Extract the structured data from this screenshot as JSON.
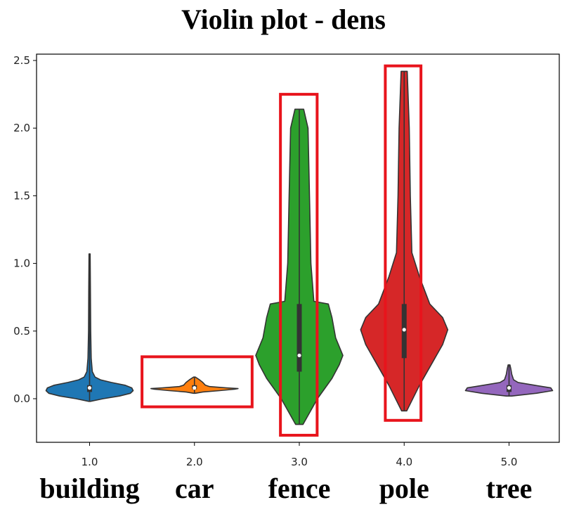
{
  "chart_data": {
    "type": "violin",
    "title": "Violin plot - dens",
    "xlabel": "",
    "ylabel": "",
    "ylim": [
      -0.32,
      2.57
    ],
    "yticks": [
      "0.0",
      "0.5",
      "1.0",
      "1.5",
      "2.0",
      "2.5"
    ],
    "xticks": [
      "1.0",
      "2.0",
      "3.0",
      "4.0",
      "5.0"
    ],
    "categories": [
      "building",
      "car",
      "fence",
      "pole",
      "tree"
    ],
    "series": [
      {
        "x": 1,
        "color": "#1f77b4",
        "min": -0.02,
        "max": 1.07,
        "q1": 0.05,
        "median": 0.08,
        "q3": 0.1,
        "density": [
          [
            -0.02,
            0.005
          ],
          [
            0.0,
            0.1
          ],
          [
            0.02,
            0.22
          ],
          [
            0.04,
            0.3
          ],
          [
            0.06,
            0.32
          ],
          [
            0.08,
            0.31
          ],
          [
            0.1,
            0.26
          ],
          [
            0.12,
            0.16
          ],
          [
            0.14,
            0.08
          ],
          [
            0.16,
            0.04
          ],
          [
            0.2,
            0.02
          ],
          [
            0.3,
            0.012
          ],
          [
            0.5,
            0.008
          ],
          [
            0.8,
            0.006
          ],
          [
            1.07,
            0.004
          ]
        ]
      },
      {
        "x": 2,
        "color": "#ff7f0e",
        "min": 0.04,
        "max": 0.16,
        "q1": 0.07,
        "median": 0.08,
        "q3": 0.1,
        "density": [
          [
            0.04,
            0.01
          ],
          [
            0.05,
            0.1
          ],
          [
            0.06,
            0.3
          ],
          [
            0.07,
            0.48
          ],
          [
            0.075,
            0.52
          ],
          [
            0.08,
            0.38
          ],
          [
            0.09,
            0.18
          ],
          [
            0.1,
            0.13
          ],
          [
            0.12,
            0.1
          ],
          [
            0.14,
            0.06
          ],
          [
            0.16,
            0.01
          ]
        ]
      },
      {
        "x": 3,
        "color": "#2ca02c",
        "min": -0.19,
        "max": 2.14,
        "q1": 0.2,
        "median": 0.32,
        "q3": 0.7,
        "density": [
          [
            -0.19,
            0.005
          ],
          [
            0.0,
            0.025
          ],
          [
            0.15,
            0.045
          ],
          [
            0.25,
            0.055
          ],
          [
            0.32,
            0.06
          ],
          [
            0.45,
            0.05
          ],
          [
            0.6,
            0.045
          ],
          [
            0.7,
            0.04
          ],
          [
            0.72,
            0.02
          ],
          [
            1.0,
            0.016
          ],
          [
            1.5,
            0.014
          ],
          [
            2.0,
            0.012
          ],
          [
            2.14,
            0.006
          ]
        ]
      },
      {
        "x": 4,
        "color": "#d62728",
        "min": -0.09,
        "max": 2.42,
        "q1": 0.3,
        "median": 0.51,
        "q3": 0.7,
        "density": [
          [
            -0.09,
            0.005
          ],
          [
            0.1,
            0.03
          ],
          [
            0.3,
            0.06
          ],
          [
            0.4,
            0.075
          ],
          [
            0.51,
            0.085
          ],
          [
            0.6,
            0.075
          ],
          [
            0.7,
            0.05
          ],
          [
            0.9,
            0.03
          ],
          [
            1.08,
            0.015
          ],
          [
            1.5,
            0.012
          ],
          [
            2.0,
            0.01
          ],
          [
            2.42,
            0.006
          ]
        ]
      },
      {
        "x": 5,
        "color": "#9467bd",
        "min": 0.02,
        "max": 0.25,
        "q1": 0.05,
        "median": 0.08,
        "q3": 0.1,
        "density": [
          [
            0.02,
            0.03
          ],
          [
            0.04,
            0.3
          ],
          [
            0.06,
            0.48
          ],
          [
            0.08,
            0.46
          ],
          [
            0.1,
            0.28
          ],
          [
            0.12,
            0.1
          ],
          [
            0.14,
            0.05
          ],
          [
            0.18,
            0.03
          ],
          [
            0.22,
            0.02
          ],
          [
            0.25,
            0.01
          ]
        ]
      }
    ],
    "highlight_boxes": [
      {
        "category": "car",
        "color": "#e8141c",
        "ymin": -0.06,
        "ymax": 0.31,
        "xmin": 1.5,
        "xmax": 2.55
      },
      {
        "category": "fence",
        "color": "#e8141c",
        "ymin": -0.27,
        "ymax": 2.25,
        "xmin": 2.82,
        "xmax": 3.17
      },
      {
        "category": "pole",
        "color": "#e8141c",
        "ymin": -0.16,
        "ymax": 2.46,
        "xmin": 3.82,
        "xmax": 4.16
      }
    ]
  }
}
